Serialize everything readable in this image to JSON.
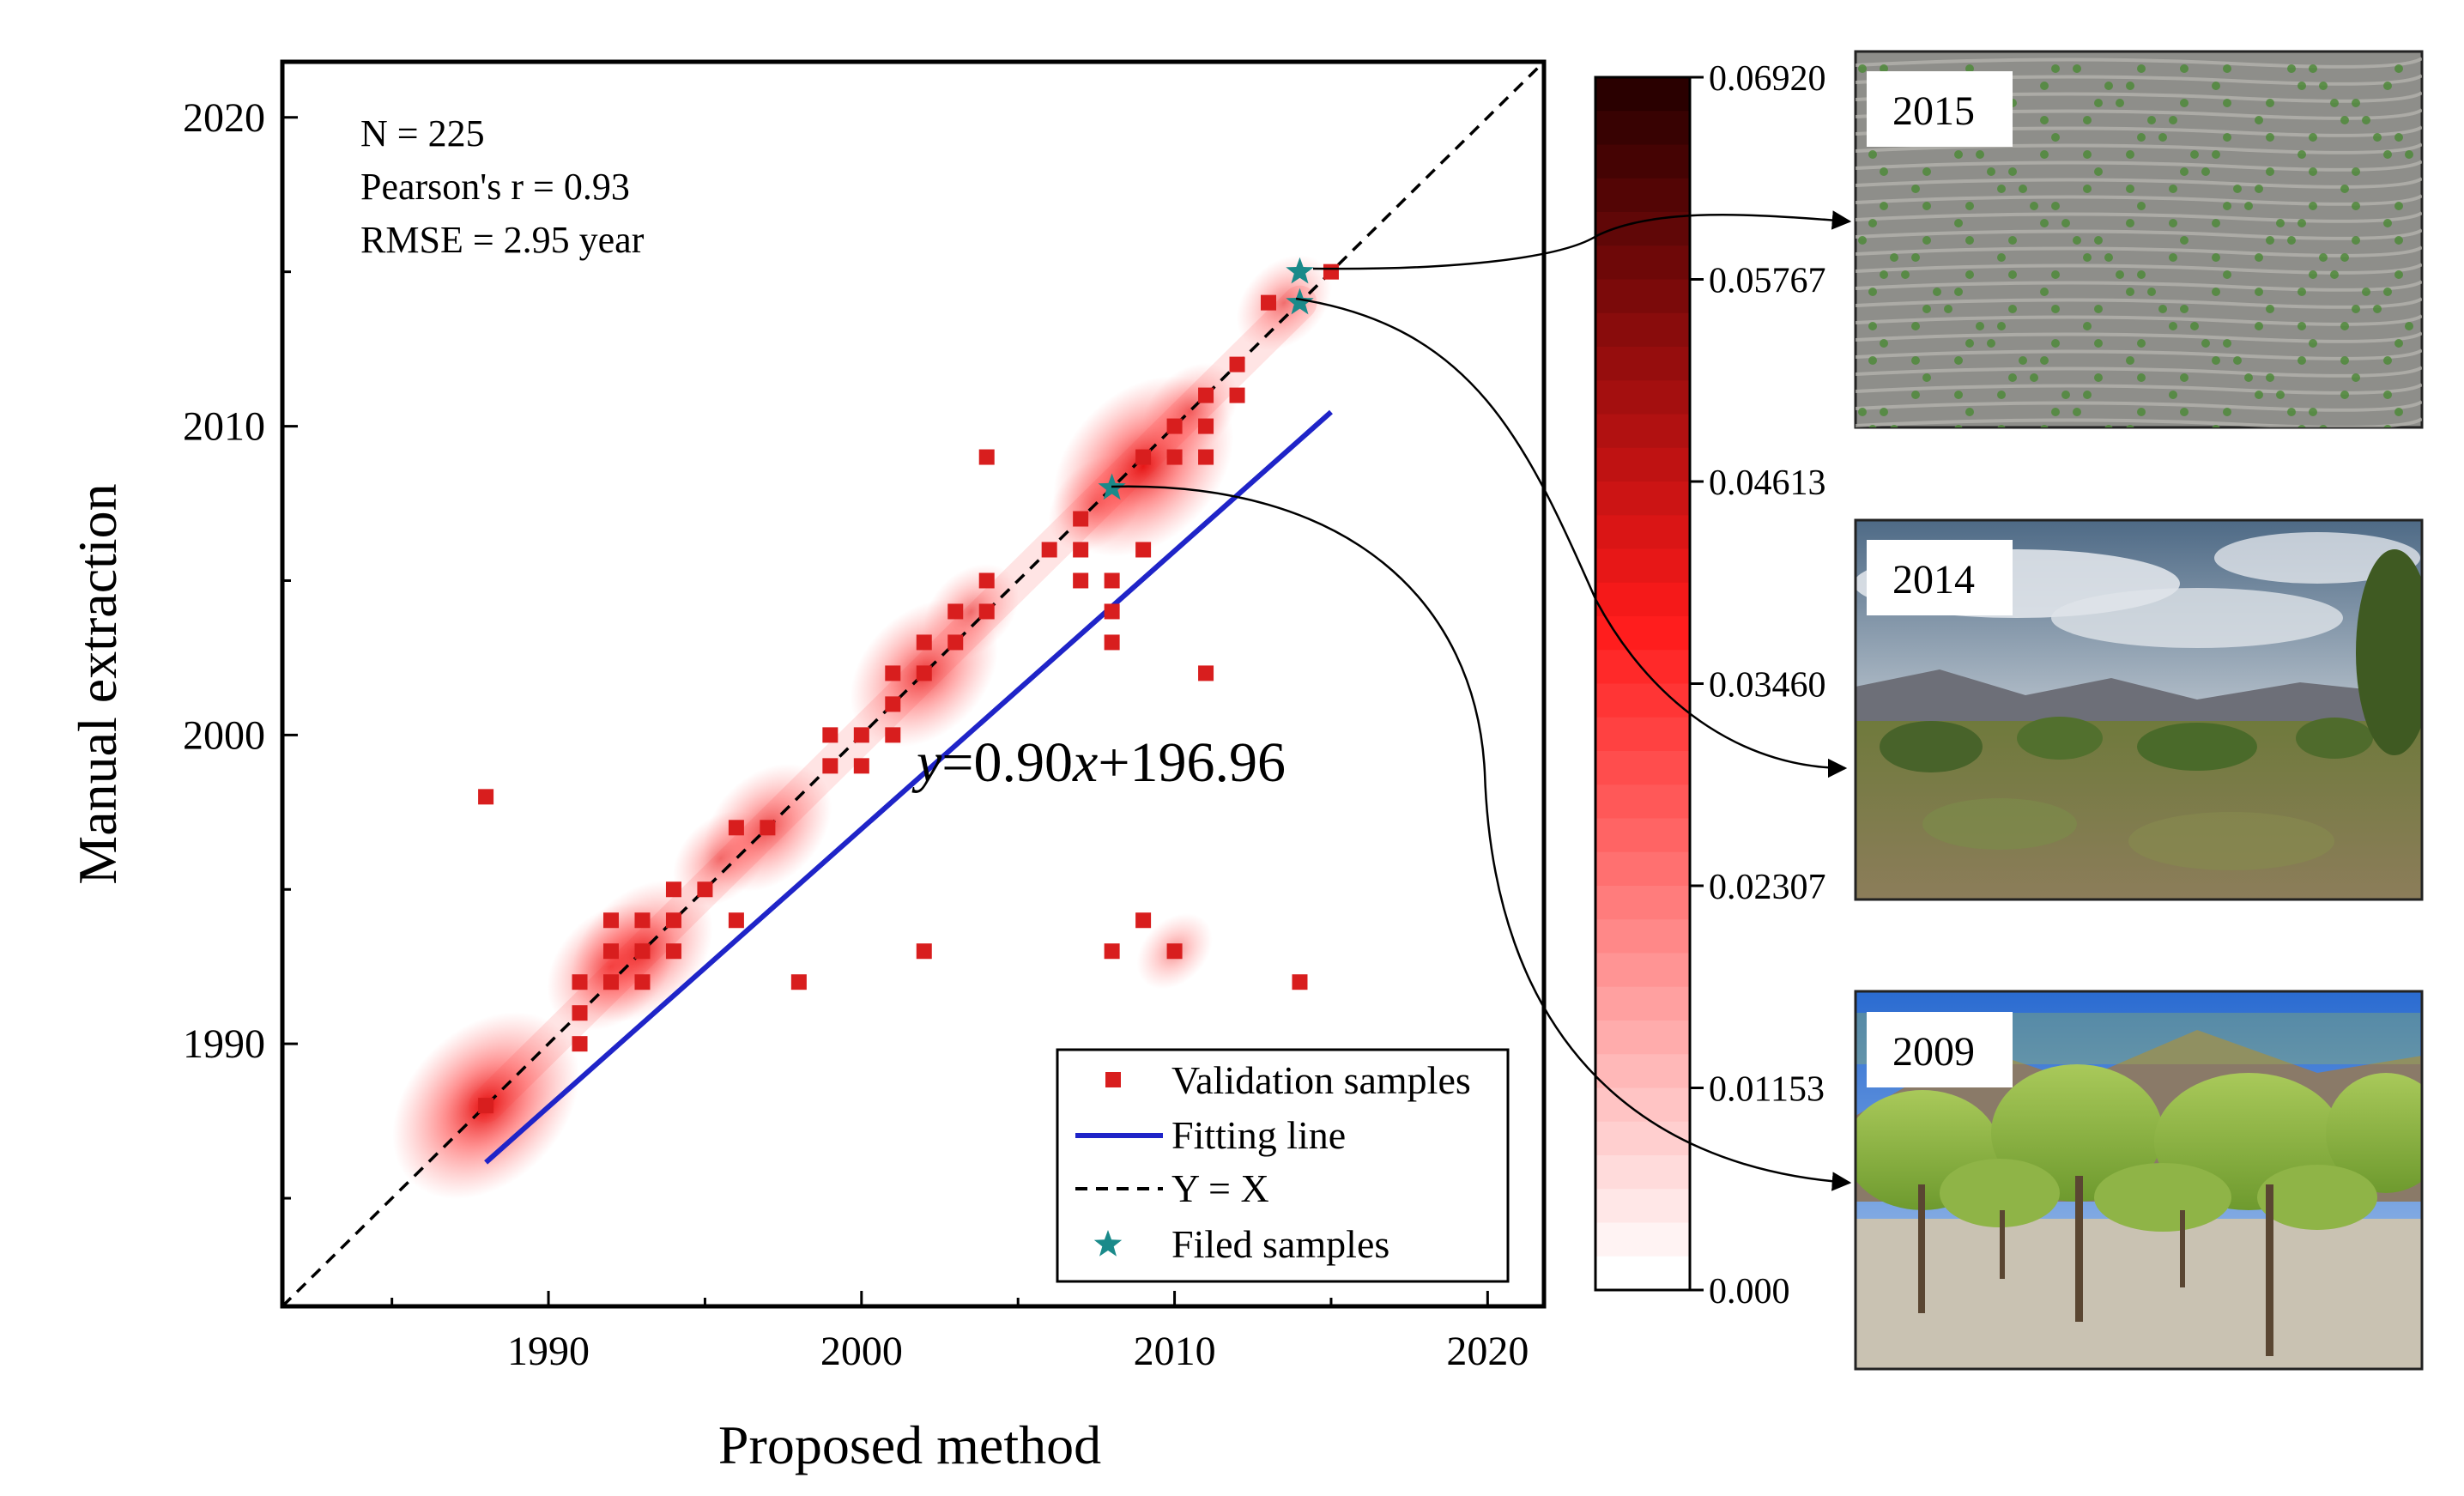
{
  "chart_data": {
    "type": "scatter",
    "xlabel": "Proposed method",
    "ylabel": "Manual extraction",
    "xlim": [
      1981.5,
      2021.8
    ],
    "ylim": [
      1981.5,
      2021.8
    ],
    "x_ticks": [
      1990,
      2000,
      2010,
      2020
    ],
    "y_ticks": [
      1990,
      2000,
      2010,
      2020
    ],
    "x_minor_ticks": [
      1985,
      1995,
      2005,
      2015
    ],
    "y_minor_ticks": [
      1985,
      1995,
      2005,
      2015
    ],
    "grid": false,
    "stats": {
      "n": "N = 225",
      "pearson": "Pearson's r = 0.93",
      "rmse": "RMSE = 2.95 year"
    },
    "equation": {
      "y_italic": "y",
      "mid": "=0.90",
      "x_italic": "x",
      "tail": "+196.96"
    },
    "fit_line": {
      "slope": 0.9,
      "intercept": 196.96,
      "x_range": [
        1988,
        2015
      ]
    },
    "identity_line": {
      "slope": 1,
      "intercept": 0
    },
    "validation_samples": [
      [
        1988,
        1998
      ],
      [
        1988,
        1988
      ],
      [
        1991,
        1992
      ],
      [
        1991,
        1991
      ],
      [
        1991,
        1990
      ],
      [
        1992,
        1994
      ],
      [
        1992,
        1993
      ],
      [
        1992,
        1992
      ],
      [
        1993,
        1994
      ],
      [
        1993,
        1993
      ],
      [
        1993,
        1992
      ],
      [
        1994,
        1995
      ],
      [
        1994,
        1994
      ],
      [
        1994,
        1993
      ],
      [
        1995,
        1995
      ],
      [
        1996,
        1997
      ],
      [
        1996,
        1994
      ],
      [
        1997,
        1997
      ],
      [
        1998,
        1992
      ],
      [
        1999,
        2000
      ],
      [
        1999,
        1999
      ],
      [
        2000,
        2000
      ],
      [
        2000,
        1999
      ],
      [
        2001,
        2002
      ],
      [
        2001,
        2001
      ],
      [
        2001,
        2000
      ],
      [
        2002,
        2003
      ],
      [
        2002,
        2002
      ],
      [
        2002,
        1993
      ],
      [
        2003,
        2004
      ],
      [
        2003,
        2003
      ],
      [
        2004,
        2005
      ],
      [
        2004,
        2004
      ],
      [
        2004,
        2009
      ],
      [
        2006,
        2006
      ],
      [
        2007,
        2007
      ],
      [
        2007,
        2006
      ],
      [
        2007,
        2005
      ],
      [
        2008,
        2005
      ],
      [
        2008,
        2004
      ],
      [
        2008,
        2003
      ],
      [
        2008,
        1993
      ],
      [
        2009,
        2009
      ],
      [
        2009,
        2006
      ],
      [
        2009,
        1994
      ],
      [
        2010,
        2010
      ],
      [
        2010,
        2009
      ],
      [
        2010,
        1993
      ],
      [
        2011,
        2011
      ],
      [
        2011,
        2010
      ],
      [
        2011,
        2009
      ],
      [
        2011,
        2002
      ],
      [
        2012,
        2012
      ],
      [
        2012,
        2011
      ],
      [
        2013,
        2014
      ],
      [
        2014,
        1992
      ],
      [
        2015,
        2015
      ]
    ],
    "density_blobs": [
      [
        1988,
        1988,
        1.0
      ],
      [
        1992,
        1992.5,
        0.55
      ],
      [
        1993,
        1993,
        0.65
      ],
      [
        1995.5,
        1996,
        0.3
      ],
      [
        1997,
        1997,
        0.55
      ],
      [
        2002,
        2002,
        0.7
      ],
      [
        2003.5,
        2004,
        0.3
      ],
      [
        2007.5,
        2007.5,
        0.3
      ],
      [
        2009,
        2008.7,
        0.95
      ],
      [
        2010.5,
        2010.5,
        0.3
      ],
      [
        2013.5,
        2014,
        0.3
      ],
      [
        2010,
        1993,
        0.15
      ]
    ],
    "filed_samples": [
      [
        2014,
        2015
      ],
      [
        2014,
        2014
      ],
      [
        2008,
        2008
      ]
    ],
    "legend": {
      "position": "bottom-right",
      "entries": [
        "Validation samples",
        "Fitting line",
        "Y = X",
        "Filed samples"
      ]
    },
    "colorbar": {
      "ticks": [
        "0.06920",
        "0.05767",
        "0.04613",
        "0.03460",
        "0.02307",
        "0.01153",
        "0.000"
      ],
      "min": 0.0,
      "max": 0.0692,
      "levels": 36
    },
    "photos": [
      {
        "label": "2015",
        "sample": [
          2014,
          2015
        ]
      },
      {
        "label": "2014",
        "sample": [
          2014,
          2014
        ]
      },
      {
        "label": "2009",
        "sample": [
          2008,
          2008
        ]
      }
    ]
  },
  "colors": {
    "marker": "#d81e1e",
    "fit_line": "#1f24c8",
    "star": "#1a8a8a",
    "density": "#ff2a2a",
    "colorbar_top": "#2a0000",
    "colorbar_mid": "#ff1a1a",
    "colorbar_bottom": "#ffffff",
    "axis": "#000000"
  }
}
